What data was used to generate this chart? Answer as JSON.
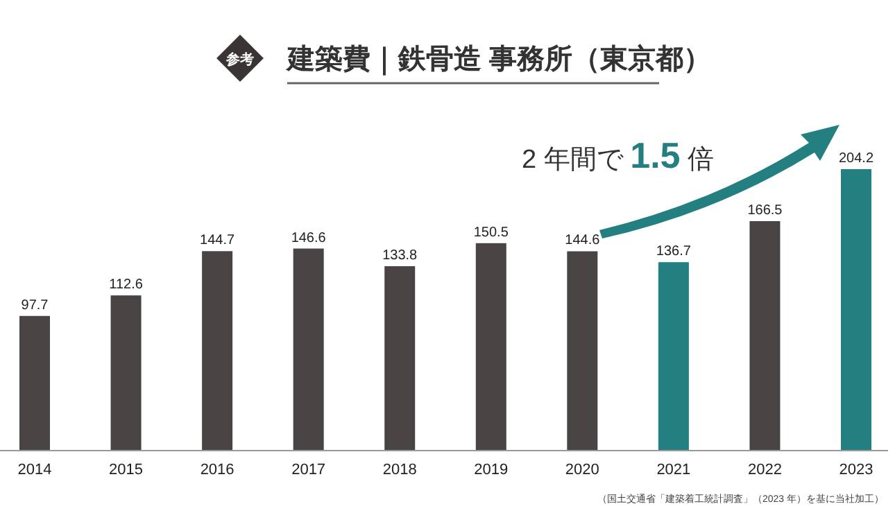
{
  "chart_data": {
    "type": "bar",
    "title": "建築費｜鉄骨造 事務所（東京都）",
    "categories": [
      "2014",
      "2015",
      "2016",
      "2017",
      "2018",
      "2019",
      "2020",
      "2021",
      "2022",
      "2023"
    ],
    "values": [
      97.7,
      112.6,
      144.7,
      146.6,
      133.8,
      150.5,
      144.6,
      136.7,
      166.5,
      204.2
    ],
    "colors": [
      "#474443",
      "#474443",
      "#474443",
      "#474443",
      "#474443",
      "#474443",
      "#474443",
      "#237f80",
      "#474443",
      "#237f80"
    ],
    "relative": false,
    "data_labels": true,
    "annotations": [
      "参考",
      "2 年間で 1.5 倍",
      "（国土交通省「建築着工統計調査」（2023 年）を基に当社加工）"
    ]
  }
}
